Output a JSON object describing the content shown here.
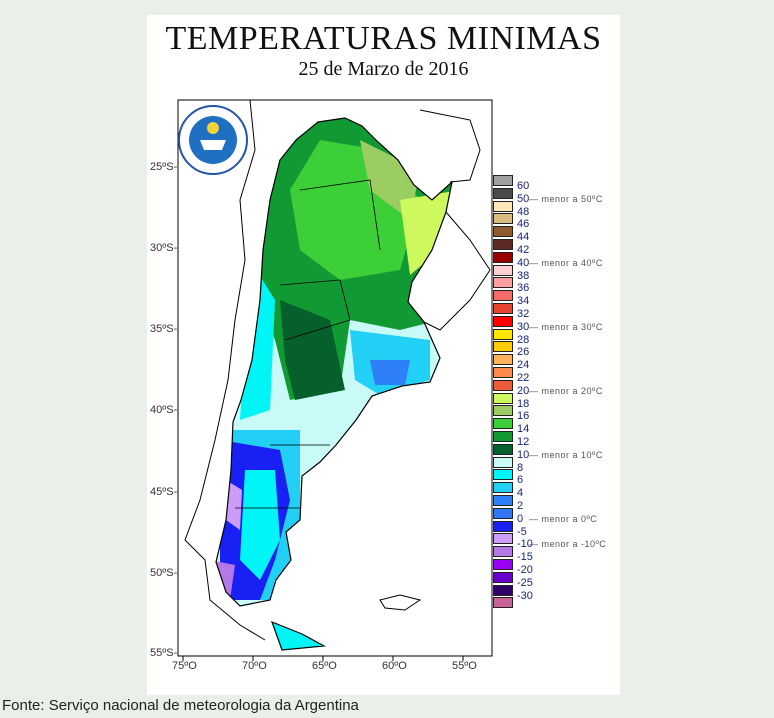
{
  "title": "TEMPERATURAS MINIMAS",
  "subtitle": "25 de Marzo de 2016",
  "logo": {
    "text": "SERVICIO METEOROLOGICO NACIONAL ARGENTINA",
    "abbr": "smn"
  },
  "lat_labels": [
    "25ºS-",
    "30ºS-",
    "35ºS-",
    "40ºS-",
    "45ºS-",
    "50ºS-",
    "55ºS-"
  ],
  "lon_labels": [
    "75ºO",
    "70ºO",
    "65ºO",
    "60ºO",
    "55ºO"
  ],
  "legend": {
    "swatches": [
      "#a0a0a0",
      "#4a4a4a",
      "#fde7b8",
      "#dcbb80",
      "#8e5a2e",
      "#5e2a28",
      "#9b0000",
      "#fecfd2",
      "#fd9ea2",
      "#fb6a6a",
      "#e8432f",
      "#ff0000",
      "#ffe400",
      "#ffcc00",
      "#ffb25c",
      "#ff8a4c",
      "#ed5b3c",
      "#cdf85e",
      "#9ccd62",
      "#3ccf38",
      "#119a33",
      "#05602c",
      "#c8fbf7",
      "#00f5f7",
      "#22d0f5",
      "#2f7ff8",
      "#2f77f5",
      "#1920f4",
      "#cd9cf9",
      "#b579e7",
      "#9b00f7",
      "#6a00ce",
      "#2f0068",
      "#ca6298"
    ],
    "labels": [
      "60",
      "50",
      "48",
      "46",
      "44",
      "42",
      "40",
      "38",
      "36",
      "34",
      "32",
      "30",
      "28",
      "26",
      "24",
      "22",
      "20",
      "18",
      "16",
      "14",
      "12",
      "10",
      "8",
      "6",
      "4",
      "2",
      "0",
      "-5",
      "-10",
      "-15",
      "-20",
      "-25",
      "-30"
    ],
    "notes": [
      "menor a 50ºC",
      "menor a 40ºC",
      "menor a 30ºC",
      "menor a 20ºC",
      "menor a 10ºC",
      "menor a 0ºC",
      "menor a -10ºC"
    ]
  },
  "caption": "Fonte: Serviço nacional de meteorologia da Argentina"
}
